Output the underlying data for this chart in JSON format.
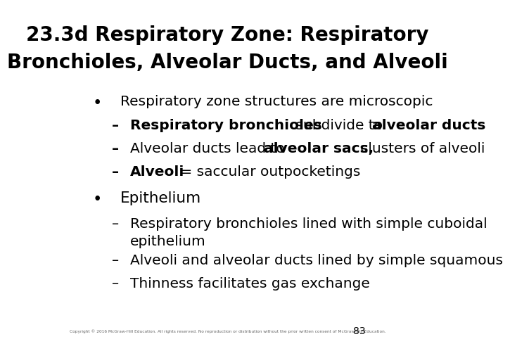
{
  "title_line1": "23.3d Respiratory Zone: Respiratory",
  "title_line2": "Bronchioles, Alveolar Ducts, and Alveoli",
  "background_color": "#ffffff",
  "text_color": "#000000",
  "title_fontsize": 20,
  "body_fontsize": 14.5,
  "footer_text": "Copyright © 2016 McGraw-Hill Education. All rights reserved. No reproduction or distribution without the prior written consent of McGraw-Hill Education.",
  "page_number": "83",
  "bullet1": "Respiratory zone structures are microscopic",
  "sub1_1_bold": "Respiratory bronchioles",
  "sub1_1_rest": " subdivide to ",
  "sub1_1_bold2": "alveolar ducts",
  "sub1_2_pre": "Alveolar ducts lead to ",
  "sub1_2_bold": "alveolar sacs,",
  "sub1_2_rest": " clusters of alveoli",
  "sub1_3_bold": "Alveoli",
  "sub1_3_rest": " = saccular outpocketings",
  "bullet2": "Epithelium",
  "sub2_1": "Respiratory bronchioles lined with simple cuboidal\nepithelium",
  "sub2_2": "Alveoli and alveolar ducts lined by simple squamous",
  "sub2_3": "Thinness facilitates gas exchange"
}
